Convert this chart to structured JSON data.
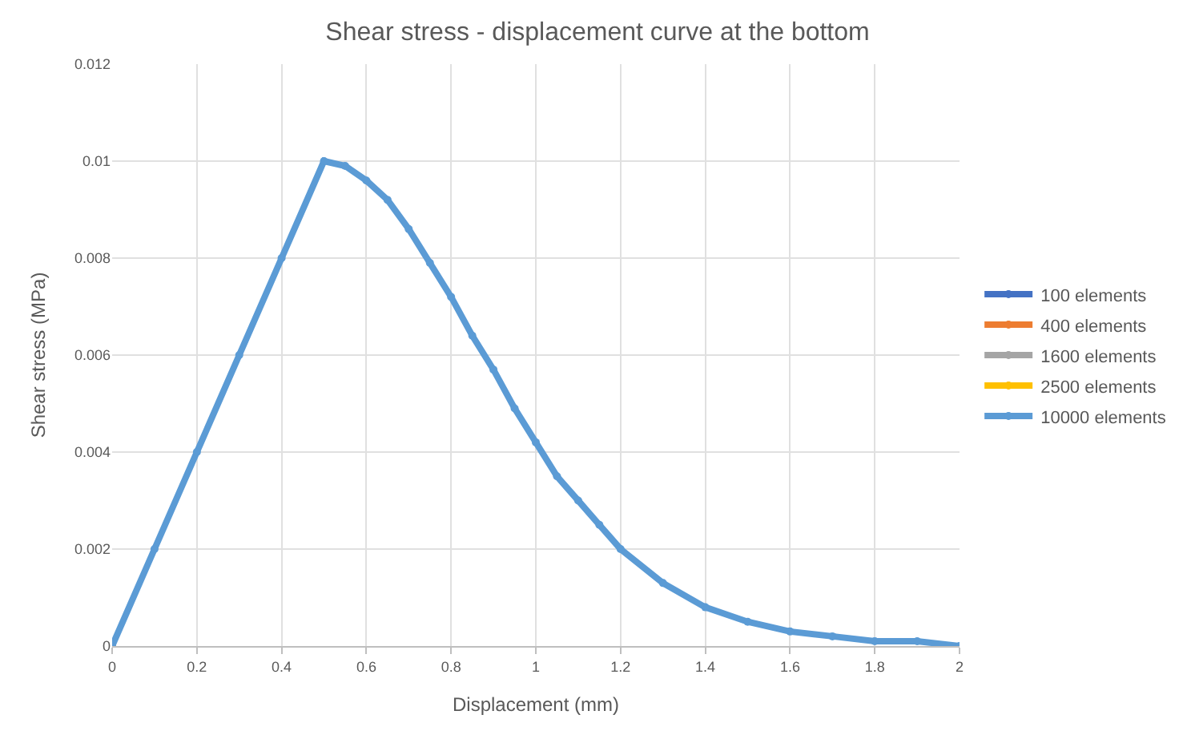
{
  "chart_data": {
    "type": "line",
    "title": "Shear stress - displacement curve at the bottom",
    "xlabel": "Displacement (mm)",
    "ylabel": "Shear stress (MPa)",
    "x": [
      0,
      0.1,
      0.2,
      0.3,
      0.4,
      0.5,
      0.55,
      0.6,
      0.65,
      0.7,
      0.75,
      0.8,
      0.85,
      0.9,
      0.95,
      1.0,
      1.05,
      1.1,
      1.15,
      1.2,
      1.3,
      1.4,
      1.5,
      1.6,
      1.7,
      1.8,
      1.9,
      2.0
    ],
    "series": [
      {
        "name": "100 elements",
        "color": "#4472c4",
        "values": [
          null,
          null,
          null,
          null,
          null,
          null,
          null,
          null,
          null,
          null,
          null,
          null,
          null,
          null,
          null,
          null,
          null,
          null,
          null,
          null,
          null,
          null,
          null,
          null,
          null,
          null,
          null,
          null
        ]
      },
      {
        "name": "400 elements",
        "color": "#ed7d31",
        "values": [
          null,
          null,
          null,
          null,
          null,
          null,
          null,
          null,
          null,
          null,
          null,
          null,
          null,
          null,
          null,
          null,
          null,
          null,
          null,
          null,
          null,
          null,
          null,
          null,
          null,
          null,
          null,
          null
        ]
      },
      {
        "name": "1600 elements",
        "color": "#a5a5a5",
        "values": [
          null,
          null,
          null,
          null,
          null,
          null,
          null,
          null,
          null,
          null,
          null,
          null,
          null,
          null,
          null,
          null,
          null,
          null,
          null,
          null,
          null,
          null,
          null,
          null,
          null,
          null,
          null,
          null
        ]
      },
      {
        "name": "2500 elements",
        "color": "#ffc000",
        "values": [
          null,
          null,
          null,
          null,
          null,
          null,
          null,
          null,
          null,
          null,
          null,
          null,
          null,
          null,
          null,
          null,
          null,
          null,
          null,
          null,
          null,
          null,
          null,
          null,
          null,
          null,
          null,
          null
        ]
      },
      {
        "name": "10000 elements",
        "color": "#5b9bd5",
        "values": [
          0,
          0.002,
          0.004,
          0.006,
          0.008,
          0.01,
          0.0099,
          0.0096,
          0.0092,
          0.0086,
          0.0079,
          0.0072,
          0.0064,
          0.0057,
          0.0049,
          0.0042,
          0.0035,
          0.003,
          0.0025,
          0.002,
          0.0013,
          0.0008,
          0.0005,
          0.0003,
          0.0002,
          0.0001,
          0.0001,
          0
        ]
      }
    ],
    "xlim": [
      0,
      2
    ],
    "xticks": [
      0,
      0.2,
      0.4,
      0.6,
      0.8,
      1,
      1.2,
      1.4,
      1.6,
      1.8,
      2
    ],
    "ylim": [
      0,
      0.012
    ],
    "yticks": [
      0,
      0.002,
      0.004,
      0.006,
      0.008,
      0.01,
      0.012
    ],
    "grid": true,
    "legend": "right",
    "marker": "circle",
    "line_style": "solid"
  }
}
